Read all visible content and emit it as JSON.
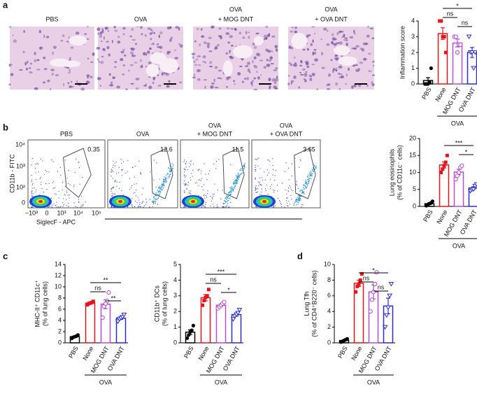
{
  "panel_letters": [
    "a",
    "b",
    "c",
    "d"
  ],
  "histology": {
    "labels": [
      [
        "PBS"
      ],
      [
        "OVA"
      ],
      [
        "OVA",
        "+ MOG DNT"
      ],
      [
        "OVA",
        "+ OVA DNT"
      ]
    ]
  },
  "flow": {
    "y_label": "CD11b - FITC",
    "x_label": "SiglecF - APC",
    "yticks": [
      "10⁴",
      "10³",
      "10²",
      "0"
    ],
    "xticks": [
      "−10³",
      "0",
      "10³",
      "10⁴",
      "10⁵"
    ],
    "plots": [
      {
        "label": [
          "PBS"
        ],
        "percent": "0.35"
      },
      {
        "label": [
          "OVA"
        ],
        "percent": "12.6"
      },
      {
        "label": [
          "OVA",
          "+ MOG DNT"
        ],
        "percent": "11.5"
      },
      {
        "label": [
          "OVA",
          "+ OVA DNT"
        ],
        "percent": "3.65"
      }
    ]
  },
  "chart_data": [
    {
      "type": "bar",
      "ylabel": [
        "Inflammation score"
      ],
      "categories": [
        "PBS",
        "None",
        "MOG DNT",
        "OVA DNT"
      ],
      "group_label": "OVA",
      "colors": [
        "#000000",
        "#e8141c",
        "#b84ad8",
        "#2b2bd6"
      ],
      "markers": [
        "circle",
        "square",
        "open-circle",
        "open-triangle"
      ],
      "values": [
        0.22,
        3.2,
        2.6,
        2.0
      ],
      "errors": [
        0.18,
        0.37,
        0.25,
        0.32
      ],
      "points": [
        [
          0,
          0,
          0,
          0.1,
          1
        ],
        [
          4,
          4,
          3,
          3,
          2
        ],
        [
          3,
          3,
          2,
          2.5,
          2.5
        ],
        [
          3,
          2,
          2,
          1,
          2
        ]
      ],
      "ylim": [
        0,
        4
      ],
      "yticks": [
        0,
        1,
        2,
        3,
        4
      ],
      "significance": [
        {
          "between": [
            "None",
            "OVA DNT"
          ],
          "label": "*"
        },
        {
          "between": [
            "None",
            "MOG DNT"
          ],
          "label": "ns"
        },
        {
          "between": [
            "MOG DNT",
            "OVA DNT"
          ],
          "label": "ns"
        }
      ]
    },
    {
      "type": "bar",
      "ylabel": [
        "Lung eosinophils",
        "(% of CD11c⁻ cells)"
      ],
      "categories": [
        "PBS",
        "None",
        "MOG DNT",
        "OVA DNT"
      ],
      "group_label": "OVA",
      "colors": [
        "#000000",
        "#e8141c",
        "#b84ad8",
        "#2b2bd6"
      ],
      "markers": [
        "circle",
        "square",
        "open-circle",
        "open-triangle"
      ],
      "values": [
        0.8,
        12.2,
        10.1,
        5.4
      ],
      "errors": [
        0.25,
        0.9,
        0.8,
        0.4
      ],
      "points": [
        [
          0.2,
          0.5,
          0.8,
          1,
          1.5
        ],
        [
          10,
          11,
          12,
          13,
          15
        ],
        [
          8,
          9,
          10,
          11.5,
          12
        ],
        [
          4.5,
          5,
          5,
          6,
          6.5
        ]
      ],
      "ylim": [
        0,
        20
      ],
      "yticks": [
        0,
        5,
        10,
        15,
        20
      ],
      "significance": [
        {
          "between": [
            "None",
            "OVA DNT"
          ],
          "label": "***"
        },
        {
          "between": [
            "MOG DNT",
            "OVA DNT"
          ],
          "label": "*"
        }
      ]
    },
    {
      "type": "bar",
      "ylabel": [
        "MHC-II⁺ CD11c⁺",
        "(% of lung cells)"
      ],
      "categories": [
        "PBS",
        "None",
        "MOG DNT",
        "OVA DNT"
      ],
      "group_label": "OVA",
      "colors": [
        "#000000",
        "#e8141c",
        "#b84ad8",
        "#2b2bd6"
      ],
      "markers": [
        "circle",
        "square",
        "open-circle",
        "open-triangle"
      ],
      "values": [
        1.1,
        7.1,
        6.9,
        4.4
      ],
      "errors": [
        0.1,
        0.1,
        0.8,
        0.2
      ],
      "points": [
        [
          0.8,
          1,
          1.1,
          1.2,
          1.4
        ],
        [
          6.8,
          7,
          7.1,
          7.2,
          7.4
        ],
        [
          4.5,
          6.5,
          7,
          7.5,
          9
        ],
        [
          3.8,
          4.2,
          4.4,
          4.6,
          5
        ]
      ],
      "ylim": [
        0,
        14
      ],
      "yticks": [
        0,
        2,
        4,
        6,
        8,
        10,
        12,
        14
      ],
      "significance": [
        {
          "between": [
            "None",
            "OVA DNT"
          ],
          "label": "**"
        },
        {
          "between": [
            "None",
            "MOG DNT"
          ],
          "label": "ns"
        },
        {
          "between": [
            "MOG DNT",
            "OVA DNT"
          ],
          "label": "**"
        }
      ]
    },
    {
      "type": "bar",
      "ylabel": [
        "CD11b⁺ DCs",
        "(% of lung cells)"
      ],
      "categories": [
        "PBS",
        "None",
        "MOG DNT",
        "OVA DNT"
      ],
      "group_label": "OVA",
      "colors": [
        "#000000",
        "#e8141c",
        "#b84ad8",
        "#2b2bd6"
      ],
      "markers": [
        "circle",
        "square",
        "open-circle",
        "open-triangle"
      ],
      "values": [
        0.68,
        2.88,
        2.4,
        1.8
      ],
      "errors": [
        0.15,
        0.2,
        0.08,
        0.1
      ],
      "points": [
        [
          0.3,
          0.5,
          0.7,
          0.8,
          1.1
        ],
        [
          2.4,
          2.7,
          2.9,
          3.0,
          3.4
        ],
        [
          2.2,
          2.3,
          2.4,
          2.5,
          2.6
        ],
        [
          1.5,
          1.7,
          1.8,
          1.9,
          2.1
        ]
      ],
      "ylim": [
        0,
        5
      ],
      "yticks": [
        0,
        1,
        2,
        3,
        4,
        5
      ],
      "significance": [
        {
          "between": [
            "None",
            "OVA DNT"
          ],
          "label": "***"
        },
        {
          "between": [
            "None",
            "MOG DNT"
          ],
          "label": "ns"
        },
        {
          "between": [
            "MOG DNT",
            "OVA DNT"
          ],
          "label": "*"
        }
      ]
    },
    {
      "type": "bar",
      "ylabel": [
        "Lung Tfh",
        "(% of CD4⁺B220⁻ cells)"
      ],
      "categories": [
        "PBS",
        "None",
        "MOG DNT",
        "OVA DNT"
      ],
      "group_label": "OVA",
      "colors": [
        "#000000",
        "#e8141c",
        "#b84ad8",
        "#2b2bd6"
      ],
      "markers": [
        "circle",
        "square",
        "open-circle",
        "open-triangle"
      ],
      "values": [
        0.3,
        7.6,
        6.5,
        4.7
      ],
      "errors": [
        0.07,
        0.4,
        0.9,
        1.0
      ],
      "points": [
        [
          0.1,
          0.2,
          0.3,
          0.4,
          0.5
        ],
        [
          6.5,
          7.2,
          7.5,
          8,
          8.8
        ],
        [
          4,
          5.5,
          6.5,
          7.5,
          9
        ],
        [
          2,
          3.5,
          4.5,
          6,
          7.5
        ]
      ],
      "ylim": [
        0,
        10
      ],
      "yticks": [
        0,
        2,
        4,
        6,
        8,
        10
      ],
      "significance": [
        {
          "between": [
            "None",
            "OVA DNT"
          ],
          "label": "*"
        },
        {
          "between": [
            "None",
            "MOG DNT"
          ],
          "label": "ns"
        },
        {
          "between": [
            "MOG DNT",
            "OVA DNT"
          ],
          "label": "ns"
        }
      ]
    }
  ]
}
